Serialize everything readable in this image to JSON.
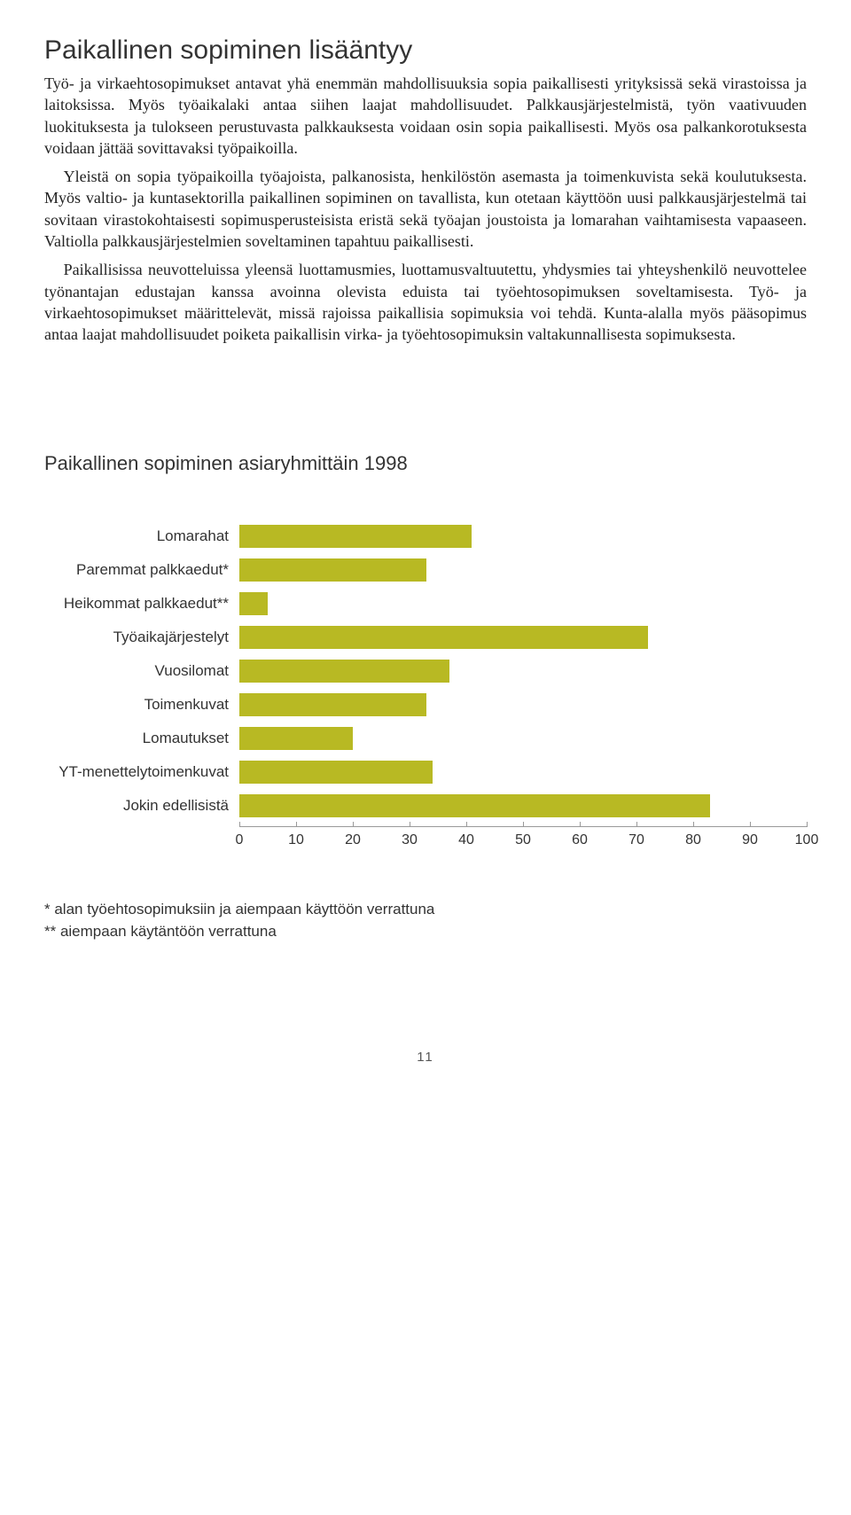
{
  "title": "Paikallinen sopiminen lisääntyy",
  "paragraphs": {
    "p1": "Työ- ja virkaehtosopimukset antavat yhä enemmän mahdollisuuksia sopia paikallisesti yrityksissä sekä virastoissa ja laitoksissa. Myös työaikalaki antaa siihen laajat mahdollisuudet. Palkkausjärjestelmistä, työn vaativuuden luokituksesta ja tulokseen perustuvasta palkkauksesta voidaan osin sopia paikallisesti. Myös osa palkankorotuksesta voidaan jättää sovittavaksi työpaikoilla.",
    "p2": "Yleistä on sopia työpaikoilla työajoista, palkanosista, henkilöstön asemasta ja toimenkuvista sekä koulutuksesta. Myös valtio- ja kuntasektorilla paikallinen sopiminen on tavallista, kun otetaan käyttöön uusi palkkausjärjestelmä tai sovitaan virastokohtaisesti sopimusperusteisista eristä sekä työajan joustoista ja lomarahan vaihtamisesta vapaaseen. Valtiolla palkkausjärjestelmien soveltaminen tapahtuu paikallisesti.",
    "p3": "Paikallisissa neuvotteluissa yleensä luottamusmies, luottamusvaltuutettu, yhdysmies tai yhteyshenkilö neuvottelee työnantajan edustajan kanssa avoinna olevista eduista tai työehtosopimuksen soveltamisesta. Työ- ja virkaehtosopimukset määrittelevät, missä rajoissa paikallisia sopimuksia voi tehdä. Kunta-alalla myös pääsopimus antaa laajat mahdollisuudet poiketa paikallisin virka- ja työehtosopimuksin valtakunnallisesta sopimuksesta."
  },
  "chart": {
    "title": "Paikallinen sopiminen asiaryhmittäin 1998",
    "type": "bar",
    "xmin": 0,
    "xmax": 100,
    "xtick_step": 10,
    "bar_color": "#b8b923",
    "axis_color": "#999999",
    "label_fontsize": 17,
    "tick_fontsize": 16,
    "categories": [
      {
        "label": "Lomarahat",
        "value": 41
      },
      {
        "label": "Paremmat palkkaedut*",
        "value": 33
      },
      {
        "label": "Heikommat palkkaedut**",
        "value": 5
      },
      {
        "label": "Työaikajärjestelyt",
        "value": 72
      },
      {
        "label": "Vuosilomat",
        "value": 37
      },
      {
        "label": "Toimenkuvat",
        "value": 33
      },
      {
        "label": "Lomautukset",
        "value": 20
      },
      {
        "label": "YT-menettelytoimenkuvat",
        "value": 34
      },
      {
        "label": "Jokin edellisistä",
        "value": 83
      }
    ],
    "xticks": [
      0,
      10,
      20,
      30,
      40,
      50,
      60,
      70,
      80,
      90,
      100
    ]
  },
  "footnotes": {
    "f1": "* alan työehtosopimuksiin ja aiempaan käyttöön verrattuna",
    "f2": "** aiempaan käytäntöön verrattuna"
  },
  "page_number": "11"
}
